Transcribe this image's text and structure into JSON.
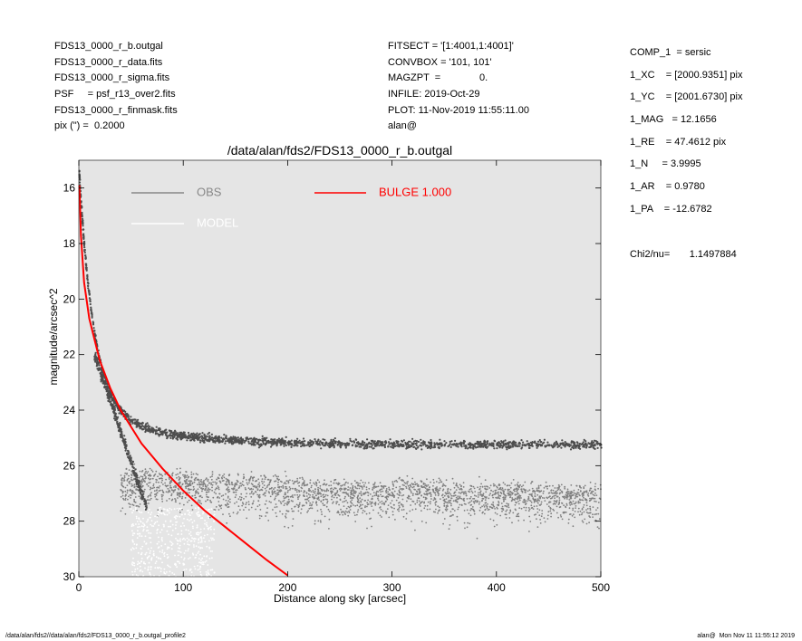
{
  "header_left": [
    "FDS13_0000_r_b.outgal",
    "FDS13_0000_r_data.fits",
    "FDS13_0000_r_sigma.fits",
    "PSF     = psf_r13_over2.fits",
    "FDS13_0000_r_finmask.fits",
    "pix (\") =  0.2000"
  ],
  "header_mid": [
    "FITSECT = '[1:4001,1:4001]'",
    "CONVBOX = '101, 101'",
    "MAGZPT  =              0.",
    "INFILE: 2019-Oct-29",
    "PLOT: 11-Nov-2019 11:55:11.00",
    "alan@"
  ],
  "params": [
    "COMP_1  = sersic",
    "1_XC    = [2000.9351] pix",
    "1_YC    = [2001.6730] pix",
    "1_MAG   = 12.1656",
    "1_RE    = 47.4612 pix",
    "1_N     = 3.9995",
    "1_AR    = 0.9780",
    "1_PA    = -12.6782"
  ],
  "chi2": "Chi2/nu=       1.1497884",
  "footer_left": "/data/alan/fds2//data/alan/fds2/FDS13_0000_r_b.outgal_profile2",
  "footer_right": "alan@  Mon Nov 11 11:55:12 2019",
  "chart_data": {
    "type": "scatter",
    "title": "/data/alan/fds2/FDS13_0000_r_b.outgal",
    "xlabel": "Distance along sky [arcsec]",
    "ylabel": "magnitude/arcsec^2",
    "xlim": [
      0,
      500
    ],
    "ylim": [
      30,
      15
    ],
    "y_inverted": true,
    "xticks": [
      0,
      100,
      200,
      300,
      400,
      500
    ],
    "yticks": [
      16,
      18,
      20,
      22,
      24,
      26,
      28,
      30
    ],
    "background": "#e5e5e5",
    "legend": [
      {
        "label": "OBS",
        "color": "#888888"
      },
      {
        "label": "MODEL",
        "color": "#ffffff"
      },
      {
        "label": "BULGE  1.000",
        "color": "#ff0000"
      }
    ],
    "series": [
      {
        "name": "OBS",
        "color": "#555555",
        "description_points": [
          {
            "x": 2,
            "y": 17.5
          },
          {
            "x": 5,
            "y": 19.5
          },
          {
            "x": 10,
            "y": 20.8
          },
          {
            "x": 20,
            "y": 22.3
          },
          {
            "x": 30,
            "y": 23.3
          },
          {
            "x": 40,
            "y": 24.0
          },
          {
            "x": 60,
            "y": 24.6
          },
          {
            "x": 100,
            "y": 24.9
          },
          {
            "x": 200,
            "y": 25.1
          },
          {
            "x": 300,
            "y": 25.2
          },
          {
            "x": 400,
            "y": 25.2
          },
          {
            "x": 500,
            "y": 25.1
          }
        ]
      },
      {
        "name": "BULGE  1.000",
        "color": "#ff0000",
        "x": [
          0.5,
          2,
          5,
          10,
          20,
          30,
          40,
          50,
          60,
          80,
          100,
          120,
          140,
          160,
          180,
          200
        ],
        "y": [
          15.9,
          17.7,
          19.4,
          20.7,
          22.2,
          23.2,
          24.0,
          24.6,
          25.2,
          26.1,
          26.9,
          27.6,
          28.2,
          28.8,
          29.4,
          29.95
        ]
      }
    ]
  }
}
